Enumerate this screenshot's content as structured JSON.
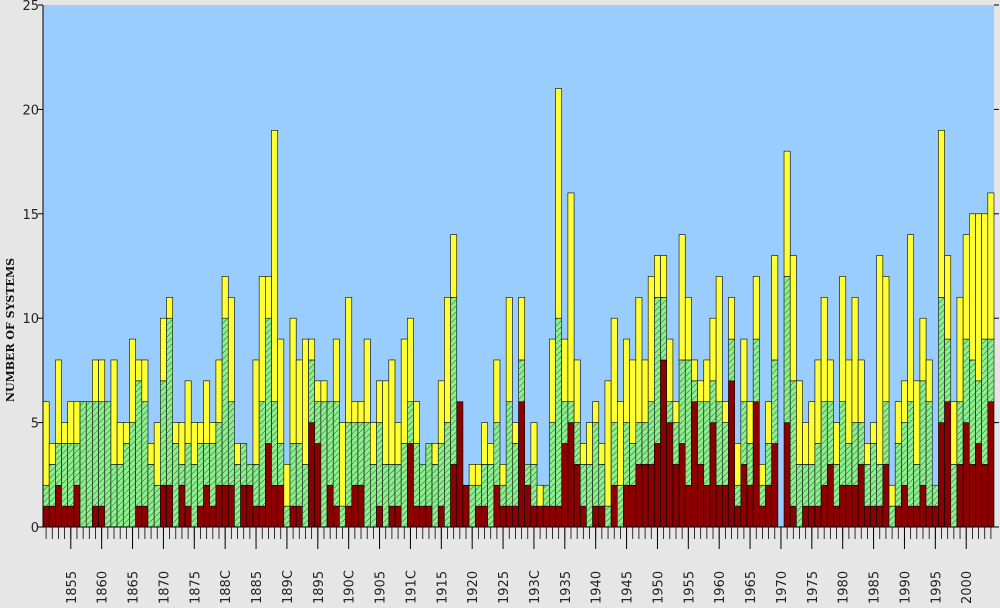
{
  "chart_data": {
    "type": "bar",
    "stacked": true,
    "ylabel": "NUMBER OF SYSTEMS",
    "ylim": [
      0,
      25
    ],
    "y_ticks": [
      0,
      5,
      10,
      15,
      20,
      25
    ],
    "x_range": [
      1851,
      2004
    ],
    "x_tick_labels": [
      {
        "year": 1855,
        "label": "1855"
      },
      {
        "year": 1860,
        "label": "1860"
      },
      {
        "year": 1865,
        "label": "1865"
      },
      {
        "year": 1870,
        "label": "1870"
      },
      {
        "year": 1875,
        "label": "1875"
      },
      {
        "year": 1880,
        "label": "188C"
      },
      {
        "year": 1885,
        "label": "1885"
      },
      {
        "year": 1890,
        "label": "189C"
      },
      {
        "year": 1895,
        "label": "1895"
      },
      {
        "year": 1900,
        "label": "190C"
      },
      {
        "year": 1905,
        "label": "1905"
      },
      {
        "year": 1910,
        "label": "191C"
      },
      {
        "year": 1915,
        "label": "1915"
      },
      {
        "year": 1920,
        "label": "1920"
      },
      {
        "year": 1925,
        "label": "1925"
      },
      {
        "year": 1930,
        "label": "193C"
      },
      {
        "year": 1935,
        "label": "1935"
      },
      {
        "year": 1940,
        "label": "1940"
      },
      {
        "year": 1945,
        "label": "1945"
      },
      {
        "year": 1950,
        "label": "1950"
      },
      {
        "year": 1955,
        "label": "1955"
      },
      {
        "year": 1960,
        "label": "1960"
      },
      {
        "year": 1965,
        "label": "1965"
      },
      {
        "year": 1970,
        "label": "1970"
      },
      {
        "year": 1975,
        "label": "1975"
      },
      {
        "year": 1980,
        "label": "1980"
      },
      {
        "year": 1985,
        "label": "1985"
      },
      {
        "year": 1990,
        "label": "1990"
      },
      {
        "year": 1995,
        "label": "1995"
      },
      {
        "year": 2000,
        "label": "2000"
      }
    ],
    "grid": false,
    "x": [
      1851,
      1852,
      1853,
      1854,
      1855,
      1856,
      1857,
      1858,
      1859,
      1860,
      1861,
      1862,
      1863,
      1864,
      1865,
      1866,
      1867,
      1868,
      1869,
      1870,
      1871,
      1872,
      1873,
      1874,
      1875,
      1876,
      1877,
      1878,
      1879,
      1880,
      1881,
      1882,
      1883,
      1884,
      1885,
      1886,
      1887,
      1888,
      1889,
      1890,
      1891,
      1892,
      1893,
      1894,
      1895,
      1896,
      1897,
      1898,
      1899,
      1900,
      1901,
      1902,
      1903,
      1904,
      1905,
      1906,
      1907,
      1908,
      1909,
      1910,
      1911,
      1912,
      1913,
      1914,
      1915,
      1916,
      1917,
      1918,
      1919,
      1920,
      1921,
      1922,
      1923,
      1924,
      1925,
      1926,
      1927,
      1928,
      1929,
      1930,
      1931,
      1932,
      1933,
      1934,
      1935,
      1936,
      1937,
      1938,
      1939,
      1940,
      1941,
      1942,
      1943,
      1944,
      1945,
      1946,
      1947,
      1948,
      1949,
      1950,
      1951,
      1952,
      1953,
      1954,
      1955,
      1956,
      1957,
      1958,
      1959,
      1960,
      1961,
      1962,
      1963,
      1964,
      1965,
      1966,
      1967,
      1968,
      1969,
      1970,
      1971,
      1972,
      1973,
      1974,
      1975,
      1976,
      1977,
      1978,
      1979,
      1980,
      1981,
      1982,
      1983,
      1984,
      1985,
      1986,
      1987,
      1988,
      1989,
      1990,
      1991,
      1992,
      1993,
      1994,
      1995,
      1996,
      1997,
      1998,
      1999,
      2000,
      2001,
      2002,
      2003,
      2004
    ],
    "series": [
      {
        "color": "#8b0000",
        "values": [
          1,
          1,
          2,
          1,
          1,
          2,
          0,
          0,
          1,
          1,
          0,
          0,
          0,
          0,
          0,
          1,
          1,
          0,
          0,
          2,
          2,
          0,
          2,
          1,
          0,
          1,
          2,
          1,
          2,
          2,
          2,
          0,
          2,
          2,
          1,
          1,
          4,
          2,
          2,
          0,
          1,
          1,
          0,
          5,
          4,
          0,
          2,
          1,
          0,
          1,
          2,
          2,
          0,
          0,
          1,
          0,
          1,
          1,
          0,
          4,
          1,
          1,
          1,
          0,
          1,
          0,
          3,
          6,
          2,
          0,
          1,
          1,
          0,
          2,
          1,
          1,
          1,
          6,
          2,
          1,
          1,
          1,
          1,
          1,
          4,
          5,
          3,
          1,
          0,
          1,
          1,
          0,
          2,
          0,
          2,
          2,
          3,
          3,
          3,
          4,
          8,
          5,
          3,
          4,
          2,
          6,
          3,
          2,
          5,
          2,
          2,
          7,
          1,
          3,
          2,
          6,
          1,
          2,
          4,
          0,
          5,
          1,
          0,
          1,
          1,
          1,
          2,
          3,
          1,
          2,
          2,
          2,
          3,
          1,
          1,
          1,
          3,
          0,
          1,
          2,
          1,
          1,
          2,
          1,
          1,
          5,
          6,
          0,
          3,
          5,
          3,
          4,
          3,
          6
        ]
      },
      {
        "color": "#90ee90",
        "hatch": true,
        "values": [
          1,
          2,
          2,
          3,
          3,
          2,
          6,
          6,
          5,
          5,
          6,
          3,
          3,
          4,
          5,
          6,
          5,
          3,
          2,
          5,
          8,
          4,
          1,
          3,
          3,
          3,
          2,
          3,
          3,
          8,
          4,
          3,
          2,
          1,
          2,
          5,
          6,
          4,
          2,
          1,
          3,
          3,
          3,
          3,
          2,
          6,
          4,
          5,
          1,
          4,
          3,
          3,
          5,
          3,
          4,
          3,
          2,
          2,
          4,
          2,
          3,
          2,
          3,
          3,
          3,
          5,
          8,
          0,
          0,
          2,
          1,
          2,
          3,
          3,
          1,
          5,
          3,
          2,
          1,
          2,
          0,
          1,
          4,
          9,
          2,
          1,
          2,
          2,
          3,
          4,
          2,
          1,
          3,
          2,
          3,
          2,
          2,
          2,
          3,
          7,
          3,
          1,
          2,
          4,
          6,
          1,
          3,
          4,
          2,
          4,
          3,
          2,
          1,
          3,
          2,
          3,
          1,
          2,
          4,
          0,
          7,
          6,
          3,
          2,
          2,
          3,
          4,
          3,
          2,
          4,
          2,
          3,
          2,
          2,
          3,
          2,
          3,
          1,
          3,
          3,
          5,
          2,
          5,
          5,
          1,
          6,
          3,
          3,
          3,
          4,
          5,
          3,
          6,
          3
        ]
      },
      {
        "color": "#ffff33",
        "values": [
          4,
          1,
          4,
          1,
          2,
          2,
          0,
          0,
          2,
          2,
          0,
          5,
          2,
          1,
          4,
          1,
          2,
          1,
          3,
          3,
          1,
          1,
          2,
          3,
          2,
          1,
          3,
          1,
          3,
          2,
          5,
          1,
          0,
          0,
          5,
          6,
          2,
          13,
          5,
          2,
          6,
          4,
          6,
          1,
          1,
          1,
          0,
          3,
          4,
          6,
          1,
          1,
          4,
          2,
          2,
          4,
          5,
          2,
          5,
          4,
          2,
          0,
          0,
          1,
          3,
          6,
          3,
          0,
          0,
          1,
          1,
          2,
          1,
          3,
          1,
          5,
          1,
          3,
          0,
          2,
          1,
          0,
          4,
          11,
          3,
          10,
          3,
          1,
          2,
          1,
          1,
          6,
          5,
          4,
          4,
          4,
          6,
          3,
          6,
          2,
          2,
          3,
          1,
          6,
          3,
          1,
          1,
          2,
          3,
          6,
          1,
          2,
          2,
          3,
          2,
          3,
          1,
          2,
          5,
          0,
          6,
          6,
          4,
          2,
          3,
          4,
          5,
          2,
          2,
          6,
          4,
          6,
          3,
          1,
          1,
          10,
          6,
          1,
          2,
          2,
          8,
          4,
          3,
          2,
          0,
          8,
          4,
          3,
          5,
          5,
          7,
          8,
          6,
          7
        ]
      }
    ]
  }
}
